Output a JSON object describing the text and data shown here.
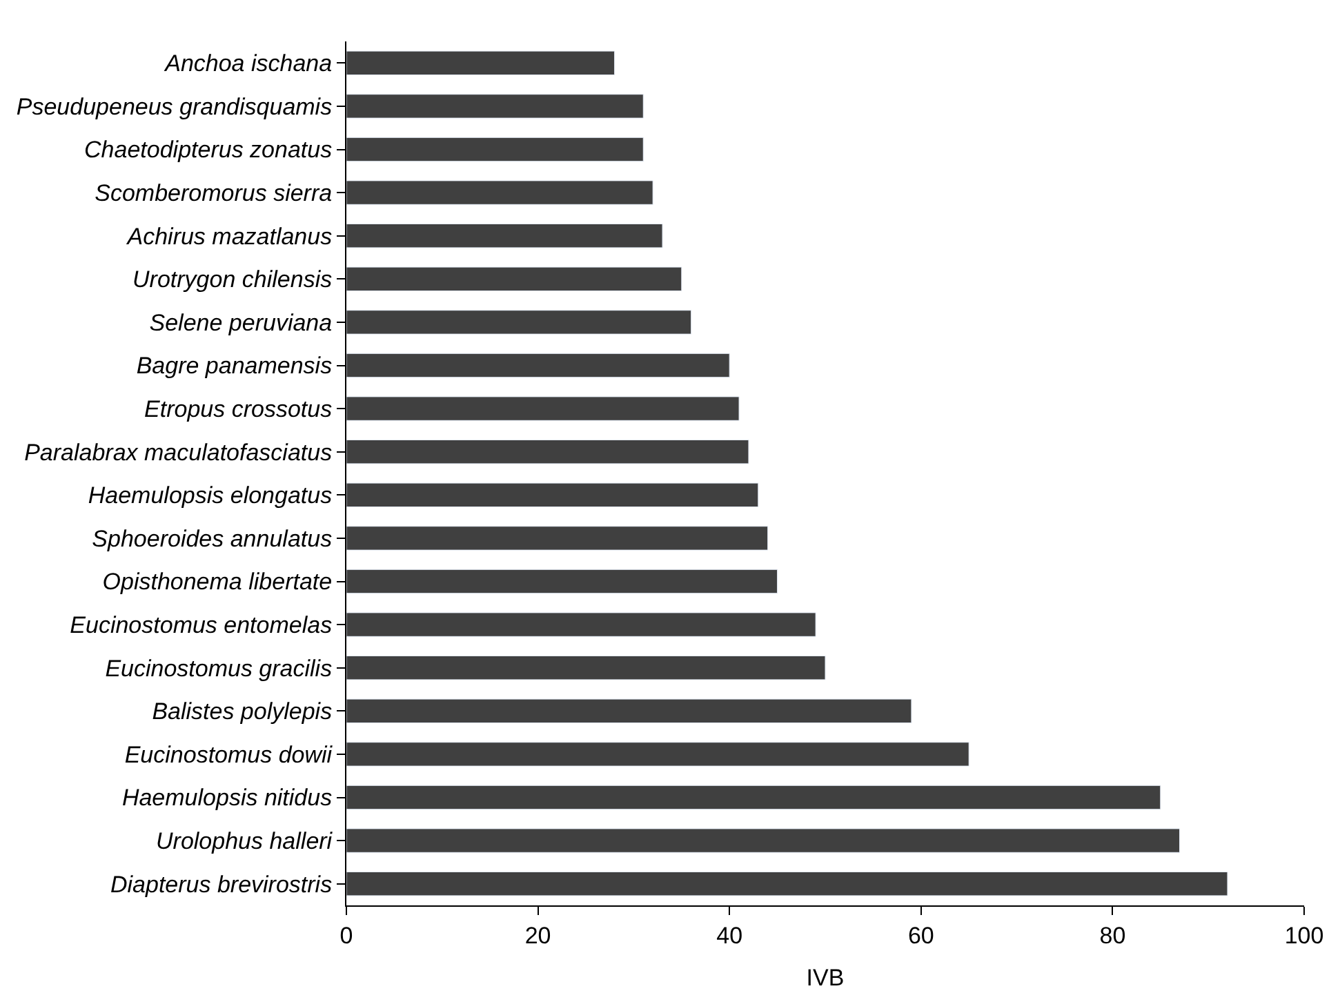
{
  "chart_data": {
    "type": "bar",
    "orientation": "horizontal",
    "xlabel": "IVB",
    "categories": [
      "Anchoa ischana",
      "Pseudupeneus grandisquamis",
      "Chaetodipterus zonatus",
      "Scomberomorus sierra",
      "Achirus mazatlanus",
      "Urotrygon chilensis",
      "Selene peruviana",
      "Bagre panamensis",
      "Etropus crossotus",
      "Paralabrax maculatofasciatus",
      "Haemulopsis elongatus",
      "Sphoeroides annulatus",
      "Opisthonema libertate",
      "Eucinostomus entomelas",
      "Eucinostomus gracilis",
      "Balistes polylepis",
      "Eucinostomus dowii",
      "Haemulopsis nitidus",
      "Urolophus halleri",
      "Diapterus brevirostris"
    ],
    "values": [
      28,
      31,
      31,
      32,
      33,
      35,
      36,
      40,
      41,
      42,
      43,
      44,
      45,
      49,
      50,
      59,
      65,
      85,
      87,
      92
    ],
    "color": "#404040",
    "xlim": [
      0,
      100
    ],
    "xticks": [
      0,
      20,
      40,
      60,
      80,
      100
    ],
    "grid": false
  }
}
